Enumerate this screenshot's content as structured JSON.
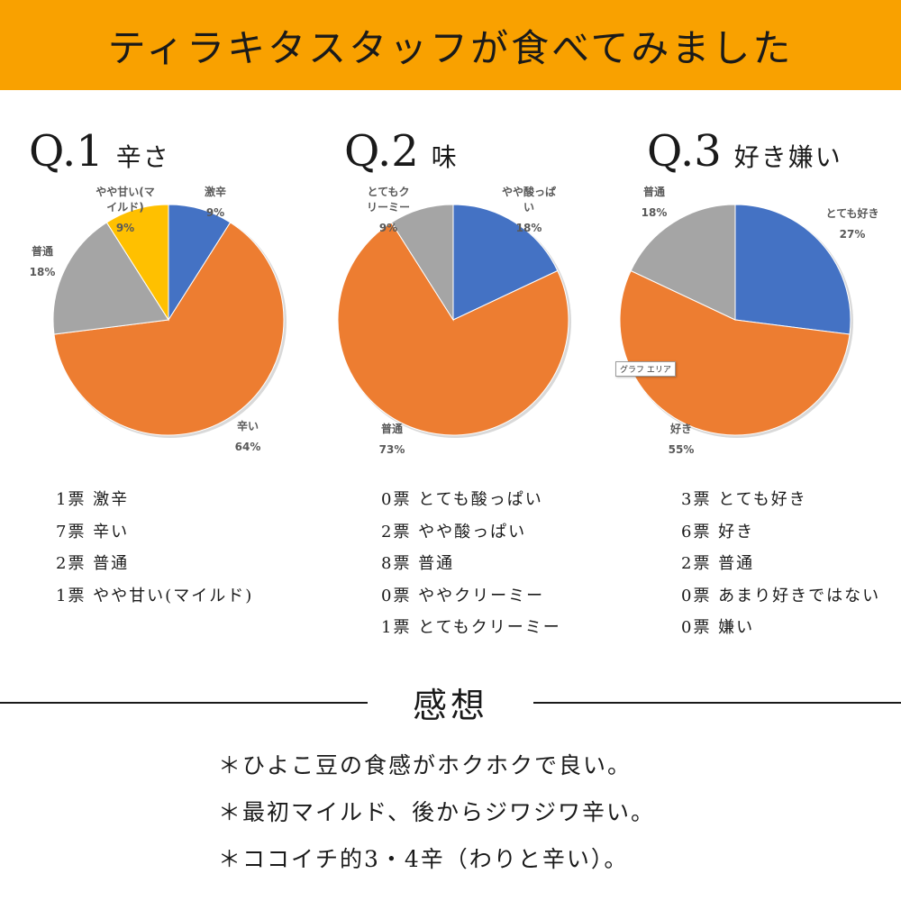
{
  "banner": {
    "title": "ティラキタスタッフが食べてみました"
  },
  "chart_data": [
    {
      "type": "pie",
      "title_num": "Q.1",
      "title_label": "辛さ",
      "slices": [
        {
          "label": "激辛",
          "value": 9,
          "pct": "9%",
          "color": "#4472c4"
        },
        {
          "label": "辛い",
          "value": 64,
          "pct": "64%",
          "color": "#ed7d31"
        },
        {
          "label": "普通",
          "value": 18,
          "pct": "18%",
          "color": "#a5a5a5"
        },
        {
          "label": "やや甘い(マイルド)",
          "label_lines": [
            "やや甘い(マ",
            "イルド)"
          ],
          "value": 9,
          "pct": "9%",
          "color": "#ffc000"
        }
      ]
    },
    {
      "type": "pie",
      "title_num": "Q.2",
      "title_label": "味",
      "slices": [
        {
          "label": "やや酸っぱい",
          "label_lines": [
            "やや酸っぱ",
            "い"
          ],
          "value": 18,
          "pct": "18%",
          "color": "#4472c4"
        },
        {
          "label": "普通",
          "value": 73,
          "pct": "73%",
          "color": "#ed7d31"
        },
        {
          "label": "とてもクリーミー",
          "label_lines": [
            "とてもク",
            "リーミー"
          ],
          "value": 9,
          "pct": "9%",
          "color": "#a5a5a5"
        }
      ]
    },
    {
      "type": "pie",
      "title_num": "Q.3",
      "title_label": "好き嫌い",
      "slices": [
        {
          "label": "とても好き",
          "value": 27,
          "pct": "27%",
          "color": "#4472c4"
        },
        {
          "label": "好き",
          "value": 55,
          "pct": "55%",
          "color": "#ed7d31"
        },
        {
          "label": "普通",
          "value": 18,
          "pct": "18%",
          "color": "#a5a5a5"
        }
      ]
    }
  ],
  "tooltip": "グラフ エリア",
  "votes": [
    [
      "1票 激辛",
      "7票 辛い",
      "2票 普通",
      "1票 やや甘い(マイルド)"
    ],
    [
      "0票 とても酸っぱい",
      "2票 やや酸っぱい",
      "8票 普通",
      "0票 ややクリーミー",
      "1票 とてもクリーミー"
    ],
    [
      "3票 とても好き",
      "6票 好き",
      "2票 普通",
      "0票 あまり好きではない",
      "0票 嫌い"
    ]
  ],
  "impressions": {
    "title": "感想",
    "items": [
      "＊ひよこ豆の食感がホクホクで良い。",
      "＊最初マイルド、後からジワジワ辛い。",
      "＊ココイチ的3・4辛（わりと辛い）。"
    ]
  },
  "colors": {
    "banner": "#f9a100"
  }
}
